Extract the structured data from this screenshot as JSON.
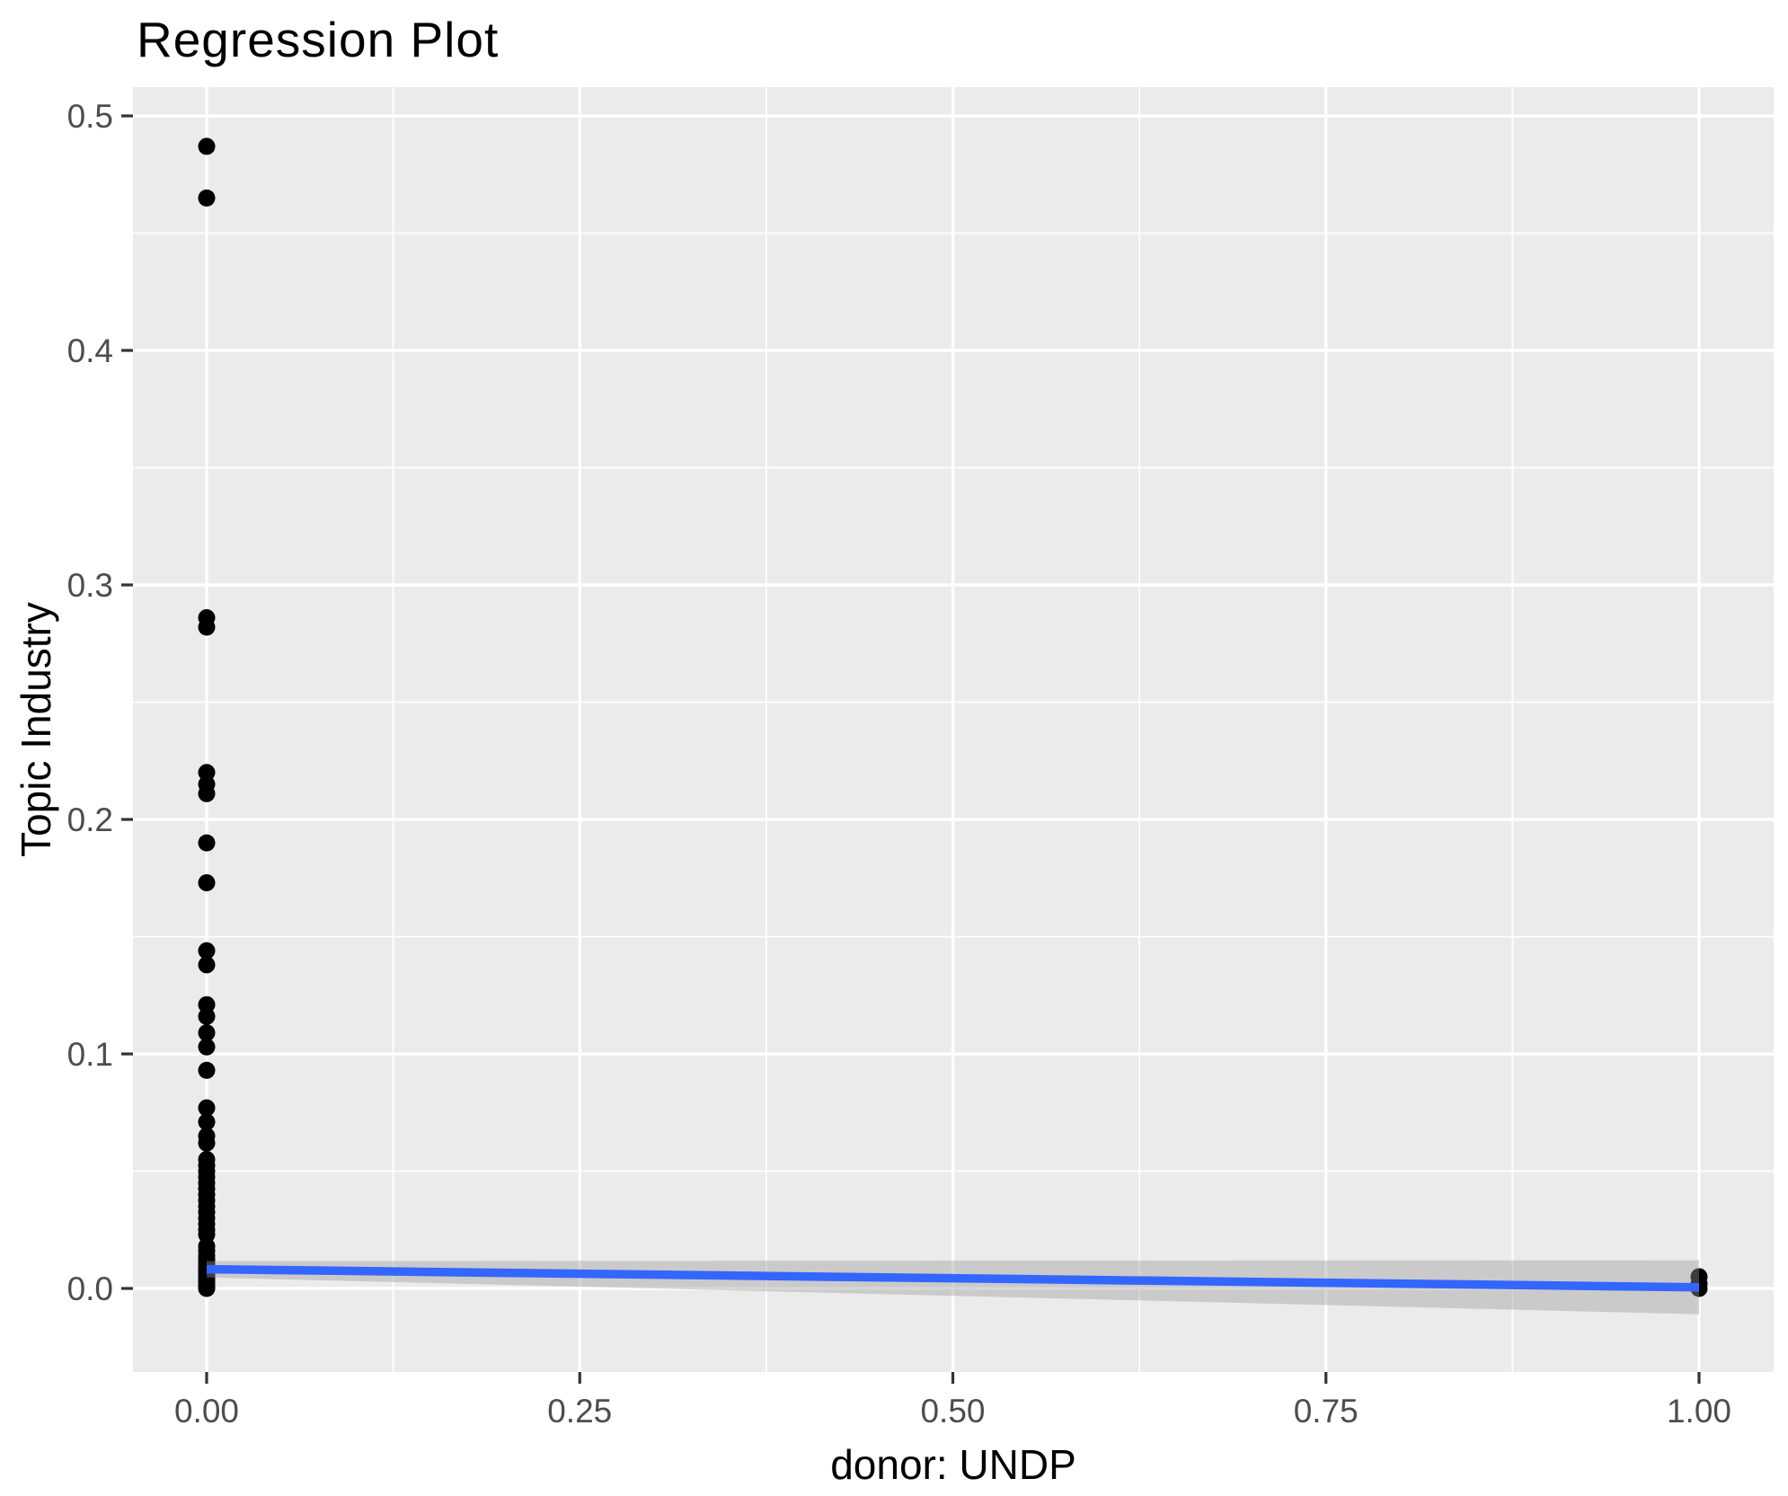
{
  "chart_data": {
    "type": "scatter",
    "title": "Regression Plot",
    "xlabel": "donor: UNDP",
    "ylabel": "Topic Industry",
    "grid": true,
    "legend_position": "none",
    "xlim": [
      -0.049,
      1.049
    ],
    "ylim": [
      -0.0356,
      0.512
    ],
    "x_tick_values": [
      0,
      0.25,
      0.5,
      0.75,
      1.0
    ],
    "x_tick_labels": [
      "0.00",
      "0.25",
      "0.50",
      "0.75",
      "1.00"
    ],
    "y_tick_values": [
      0,
      0.1,
      0.2,
      0.3,
      0.4,
      0.5
    ],
    "y_tick_labels": [
      "0.0",
      "0.1",
      "0.2",
      "0.3",
      "0.4",
      "0.5"
    ],
    "x_minor_ticks": [
      0.125,
      0.375,
      0.625,
      0.875
    ],
    "y_minor_ticks": [
      0.05,
      0.15,
      0.25,
      0.35,
      0.45
    ],
    "points": [
      [
        0,
        0.487
      ],
      [
        0,
        0.465
      ],
      [
        0,
        0.286
      ],
      [
        0,
        0.282
      ],
      [
        0,
        0.22
      ],
      [
        0,
        0.215
      ],
      [
        0,
        0.211
      ],
      [
        0,
        0.19
      ],
      [
        0,
        0.173
      ],
      [
        0,
        0.144
      ],
      [
        0,
        0.138
      ],
      [
        0,
        0.121
      ],
      [
        0,
        0.116
      ],
      [
        0,
        0.109
      ],
      [
        0,
        0.103
      ],
      [
        0,
        0.093
      ],
      [
        0,
        0.077
      ],
      [
        0,
        0.071
      ],
      [
        0,
        0.065
      ],
      [
        0,
        0.062
      ],
      [
        0,
        0.055
      ],
      [
        0,
        0.0525
      ],
      [
        0,
        0.05
      ],
      [
        0,
        0.0475
      ],
      [
        0,
        0.045
      ],
      [
        0,
        0.0425
      ],
      [
        0,
        0.04
      ],
      [
        0,
        0.0375
      ],
      [
        0,
        0.035
      ],
      [
        0,
        0.0325
      ],
      [
        0,
        0.03
      ],
      [
        0,
        0.0275
      ],
      [
        0,
        0.025
      ],
      [
        0,
        0.023
      ],
      [
        0,
        0.018
      ],
      [
        0,
        0.016
      ],
      [
        0,
        0.014
      ],
      [
        0,
        0.0125
      ],
      [
        0,
        0.011
      ],
      [
        0,
        0.0095
      ],
      [
        0,
        0.008
      ],
      [
        0,
        0.007
      ],
      [
        0,
        0.006
      ],
      [
        0,
        0.005
      ],
      [
        0,
        0.004
      ],
      [
        0,
        0.003
      ],
      [
        0,
        0.002
      ],
      [
        0,
        0.001
      ],
      [
        0,
        0.0005
      ],
      [
        0,
        0.0
      ],
      [
        1,
        0.005
      ],
      [
        1,
        0.002
      ],
      [
        1,
        0.0
      ]
    ],
    "regression_line": {
      "x_start": 0,
      "y_start": 0.0082,
      "x_end": 1,
      "y_end": 0.0005
    },
    "confidence_band": {
      "x": [
        0,
        1
      ],
      "upper": [
        0.0117,
        0.012
      ],
      "lower": [
        0.0047,
        -0.011
      ]
    },
    "colors": {
      "panel_background": "#EBEBEB",
      "gridline": "#FFFFFF",
      "point": "#000000",
      "smooth_line": "#3366FF",
      "confidence_band_fill": "#999999",
      "confidence_band_opacity": 0.4,
      "tick_label_text": "#4D4D4D",
      "tick_mark": "#333333",
      "title_text": "#000000"
    }
  }
}
